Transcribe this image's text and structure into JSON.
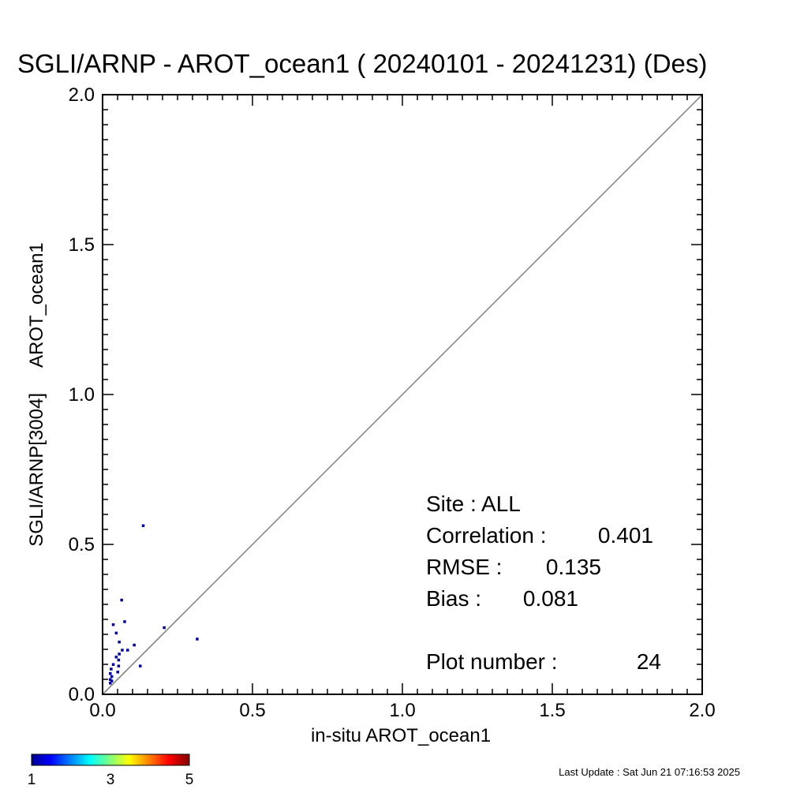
{
  "chart_data": {
    "type": "scatter",
    "title": "SGLI/ARNP - AROT_ocean1 ( 20240101 - 20241231) (Des)",
    "xlabel": "in-situ AROT_ocean1",
    "ylabel": "SGLI/ARNP[3004]     AROT_ocean1",
    "xlim": [
      0.0,
      2.0
    ],
    "ylim": [
      0.0,
      2.0
    ],
    "x_ticks": [
      "0.0",
      "0.5",
      "1.0",
      "1.5",
      "2.0"
    ],
    "y_ticks": [
      "0.0",
      "0.5",
      "1.0",
      "1.5",
      "2.0"
    ],
    "reference_line": "1:1",
    "grid": false,
    "points": [
      {
        "x": 0.135,
        "y": 0.563
      },
      {
        "x": 0.063,
        "y": 0.315
      },
      {
        "x": 0.073,
        "y": 0.243
      },
      {
        "x": 0.035,
        "y": 0.233
      },
      {
        "x": 0.205,
        "y": 0.223
      },
      {
        "x": 0.045,
        "y": 0.205
      },
      {
        "x": 0.315,
        "y": 0.185
      },
      {
        "x": 0.055,
        "y": 0.175
      },
      {
        "x": 0.105,
        "y": 0.165
      },
      {
        "x": 0.065,
        "y": 0.148
      },
      {
        "x": 0.083,
        "y": 0.148
      },
      {
        "x": 0.055,
        "y": 0.135
      },
      {
        "x": 0.045,
        "y": 0.125
      },
      {
        "x": 0.053,
        "y": 0.115
      },
      {
        "x": 0.035,
        "y": 0.1
      },
      {
        "x": 0.053,
        "y": 0.095
      },
      {
        "x": 0.125,
        "y": 0.095
      },
      {
        "x": 0.028,
        "y": 0.085
      },
      {
        "x": 0.05,
        "y": 0.075
      },
      {
        "x": 0.025,
        "y": 0.07
      },
      {
        "x": 0.03,
        "y": 0.06
      },
      {
        "x": 0.025,
        "y": 0.05
      },
      {
        "x": 0.03,
        "y": 0.045
      },
      {
        "x": 0.025,
        "y": 0.038
      }
    ],
    "point_color": "#00008f",
    "colorbar": {
      "ticks": [
        "1",
        "3",
        "5"
      ],
      "colors": [
        "#00008f",
        "#0000ff",
        "#00ffff",
        "#ffff00",
        "#ff0000",
        "#800000"
      ]
    }
  },
  "stats": {
    "site": "Site : ALL",
    "correlation_label": "Correlation :",
    "correlation_value": "0.401",
    "rmse_label": "RMSE :",
    "rmse_value": "0.135",
    "bias_label": "Bias :",
    "bias_value": "0.081",
    "plot_number_label": "Plot number :",
    "plot_number_value": "24"
  },
  "footer": {
    "last_update": "Last Update : Sat Jun 21 07:16:53 2025"
  }
}
